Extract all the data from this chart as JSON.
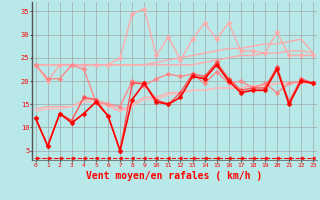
{
  "background_color": "#b8e8e8",
  "grid_color": "#999999",
  "xlabel": "Vent moyen/en rafales ( km/h )",
  "xlabel_color": "#ff0000",
  "xlabel_fontsize": 7,
  "yticks": [
    5,
    10,
    15,
    20,
    25,
    30,
    35
  ],
  "xticks": [
    0,
    1,
    2,
    3,
    4,
    5,
    6,
    7,
    8,
    9,
    10,
    11,
    12,
    13,
    14,
    15,
    16,
    17,
    18,
    19,
    20,
    21,
    22,
    23
  ],
  "ylim": [
    3,
    37
  ],
  "xlim": [
    -0.3,
    23.3
  ],
  "series": [
    {
      "x": [
        0,
        1,
        2,
        3,
        4,
        5,
        6,
        7,
        8,
        9,
        10,
        11,
        12,
        13,
        14,
        15,
        16,
        17,
        18,
        19,
        20,
        21,
        22,
        23
      ],
      "y": [
        23.5,
        23.5,
        23.5,
        23.5,
        23.5,
        23.5,
        23.5,
        23.5,
        23.5,
        23.5,
        23.5,
        23.5,
        23.5,
        23.5,
        24.0,
        24.5,
        25.0,
        25.5,
        25.5,
        26.0,
        26.0,
        26.5,
        26.5,
        26.0
      ],
      "color": "#ffaaaa",
      "lw": 1.0,
      "marker": null,
      "linestyle": "-"
    },
    {
      "x": [
        0,
        1,
        2,
        3,
        4,
        5,
        6,
        7,
        8,
        9,
        10,
        11,
        12,
        13,
        14,
        15,
        16,
        17,
        18,
        19,
        20,
        21,
        22,
        23
      ],
      "y": [
        23.5,
        23.5,
        23.5,
        23.5,
        23.5,
        23.5,
        23.5,
        23.5,
        23.5,
        23.5,
        24.0,
        24.5,
        25.0,
        25.5,
        26.0,
        26.5,
        27.0,
        27.0,
        27.5,
        28.0,
        28.0,
        28.5,
        29.0,
        26.0
      ],
      "color": "#ffaaaa",
      "lw": 1.0,
      "marker": null,
      "linestyle": "-"
    },
    {
      "x": [
        0,
        1,
        2,
        3,
        4,
        5,
        6,
        7,
        8,
        9,
        10,
        11,
        12,
        13,
        14,
        15,
        16,
        17,
        18,
        19,
        20,
        21,
        22,
        23
      ],
      "y": [
        14.0,
        14.5,
        14.5,
        14.5,
        16.0,
        16.0,
        15.0,
        13.5,
        15.0,
        16.5,
        16.5,
        17.5,
        17.5,
        18.0,
        18.0,
        18.5,
        18.5,
        18.5,
        19.0,
        19.0,
        19.5,
        19.5,
        19.5,
        19.5
      ],
      "color": "#ffaaaa",
      "lw": 1.0,
      "marker": null,
      "linestyle": "-"
    },
    {
      "x": [
        0,
        1,
        2,
        3,
        4,
        5,
        6,
        7,
        8,
        9,
        10,
        11,
        12,
        13,
        14,
        15,
        16,
        17,
        18,
        19,
        20,
        21,
        22,
        23
      ],
      "y": [
        13.5,
        14.0,
        14.0,
        14.5,
        15.5,
        15.5,
        14.5,
        13.5,
        14.5,
        16.0,
        16.0,
        17.0,
        17.5,
        18.0,
        18.0,
        18.5,
        18.5,
        18.5,
        19.0,
        19.0,
        19.5,
        19.5,
        19.5,
        19.5
      ],
      "color": "#ffbbbb",
      "lw": 1.0,
      "marker": null,
      "linestyle": "-"
    },
    {
      "x": [
        0,
        1,
        2,
        3,
        4,
        5,
        6,
        7,
        8,
        9,
        10,
        11,
        12,
        13,
        14,
        15,
        16,
        17,
        18,
        19,
        20,
        21,
        22,
        23
      ],
      "y": [
        23.5,
        20.0,
        23.5,
        23.5,
        23.5,
        23.5,
        23.5,
        25.0,
        34.5,
        35.5,
        25.5,
        29.5,
        24.5,
        29.0,
        32.5,
        29.0,
        32.5,
        26.5,
        26.5,
        26.0,
        30.5,
        25.5,
        25.5,
        25.5
      ],
      "color": "#ffaaaa",
      "lw": 1.0,
      "marker": "D",
      "markersize": 2.5,
      "linestyle": "-"
    },
    {
      "x": [
        0,
        1,
        2,
        3,
        4,
        5,
        6,
        7,
        8,
        9,
        10,
        11,
        12,
        13,
        14,
        15,
        16,
        17,
        18,
        19,
        20,
        21,
        22,
        23
      ],
      "y": [
        23.5,
        20.5,
        20.5,
        23.5,
        22.5,
        15.5,
        15.0,
        14.5,
        20.0,
        19.0,
        20.5,
        21.5,
        21.0,
        21.5,
        19.5,
        22.0,
        19.5,
        20.0,
        18.5,
        19.5,
        17.5,
        19.5,
        20.0,
        19.5
      ],
      "color": "#ff8888",
      "lw": 1.0,
      "marker": "D",
      "markersize": 2.5,
      "linestyle": "-"
    },
    {
      "x": [
        0,
        1,
        2,
        3,
        4,
        5,
        6,
        7,
        8,
        9,
        10,
        11,
        12,
        13,
        14,
        15,
        16,
        17,
        18,
        19,
        20,
        21,
        22,
        23
      ],
      "y": [
        12.0,
        6.0,
        13.0,
        11.5,
        16.5,
        16.0,
        12.5,
        5.0,
        19.5,
        19.5,
        16.0,
        15.0,
        17.5,
        21.5,
        21.0,
        24.0,
        20.5,
        18.0,
        18.5,
        18.5,
        23.0,
        15.5,
        20.5,
        19.5
      ],
      "color": "#ff5555",
      "lw": 1.0,
      "marker": "D",
      "markersize": 2.5,
      "linestyle": "-"
    },
    {
      "x": [
        0,
        1,
        2,
        3,
        4,
        5,
        6,
        7,
        8,
        9,
        10,
        11,
        12,
        13,
        14,
        15,
        16,
        17,
        18,
        19,
        20,
        21,
        22,
        23
      ],
      "y": [
        12.0,
        6.0,
        13.0,
        11.0,
        13.0,
        15.5,
        12.5,
        5.0,
        16.0,
        19.5,
        15.5,
        15.0,
        16.5,
        21.0,
        20.5,
        23.5,
        20.0,
        17.5,
        18.0,
        18.0,
        22.5,
        15.0,
        20.0,
        19.5
      ],
      "color": "#ff0000",
      "lw": 1.2,
      "marker": "D",
      "markersize": 2.5,
      "linestyle": "-"
    },
    {
      "x": [
        0,
        1,
        2,
        3,
        4,
        5,
        6,
        7,
        8,
        9,
        10,
        11,
        12,
        13,
        14,
        15,
        16,
        17,
        18,
        19,
        20,
        21,
        22,
        23
      ],
      "y": [
        3.5,
        3.5,
        3.5,
        3.5,
        3.5,
        3.5,
        3.5,
        3.5,
        3.5,
        3.5,
        3.5,
        3.5,
        3.5,
        3.5,
        3.5,
        3.5,
        3.5,
        3.5,
        3.5,
        3.5,
        3.5,
        3.5,
        3.5,
        3.5
      ],
      "color": "#ff0000",
      "lw": 0.8,
      "marker": "<",
      "markersize": 2.5,
      "linestyle": "--"
    }
  ]
}
